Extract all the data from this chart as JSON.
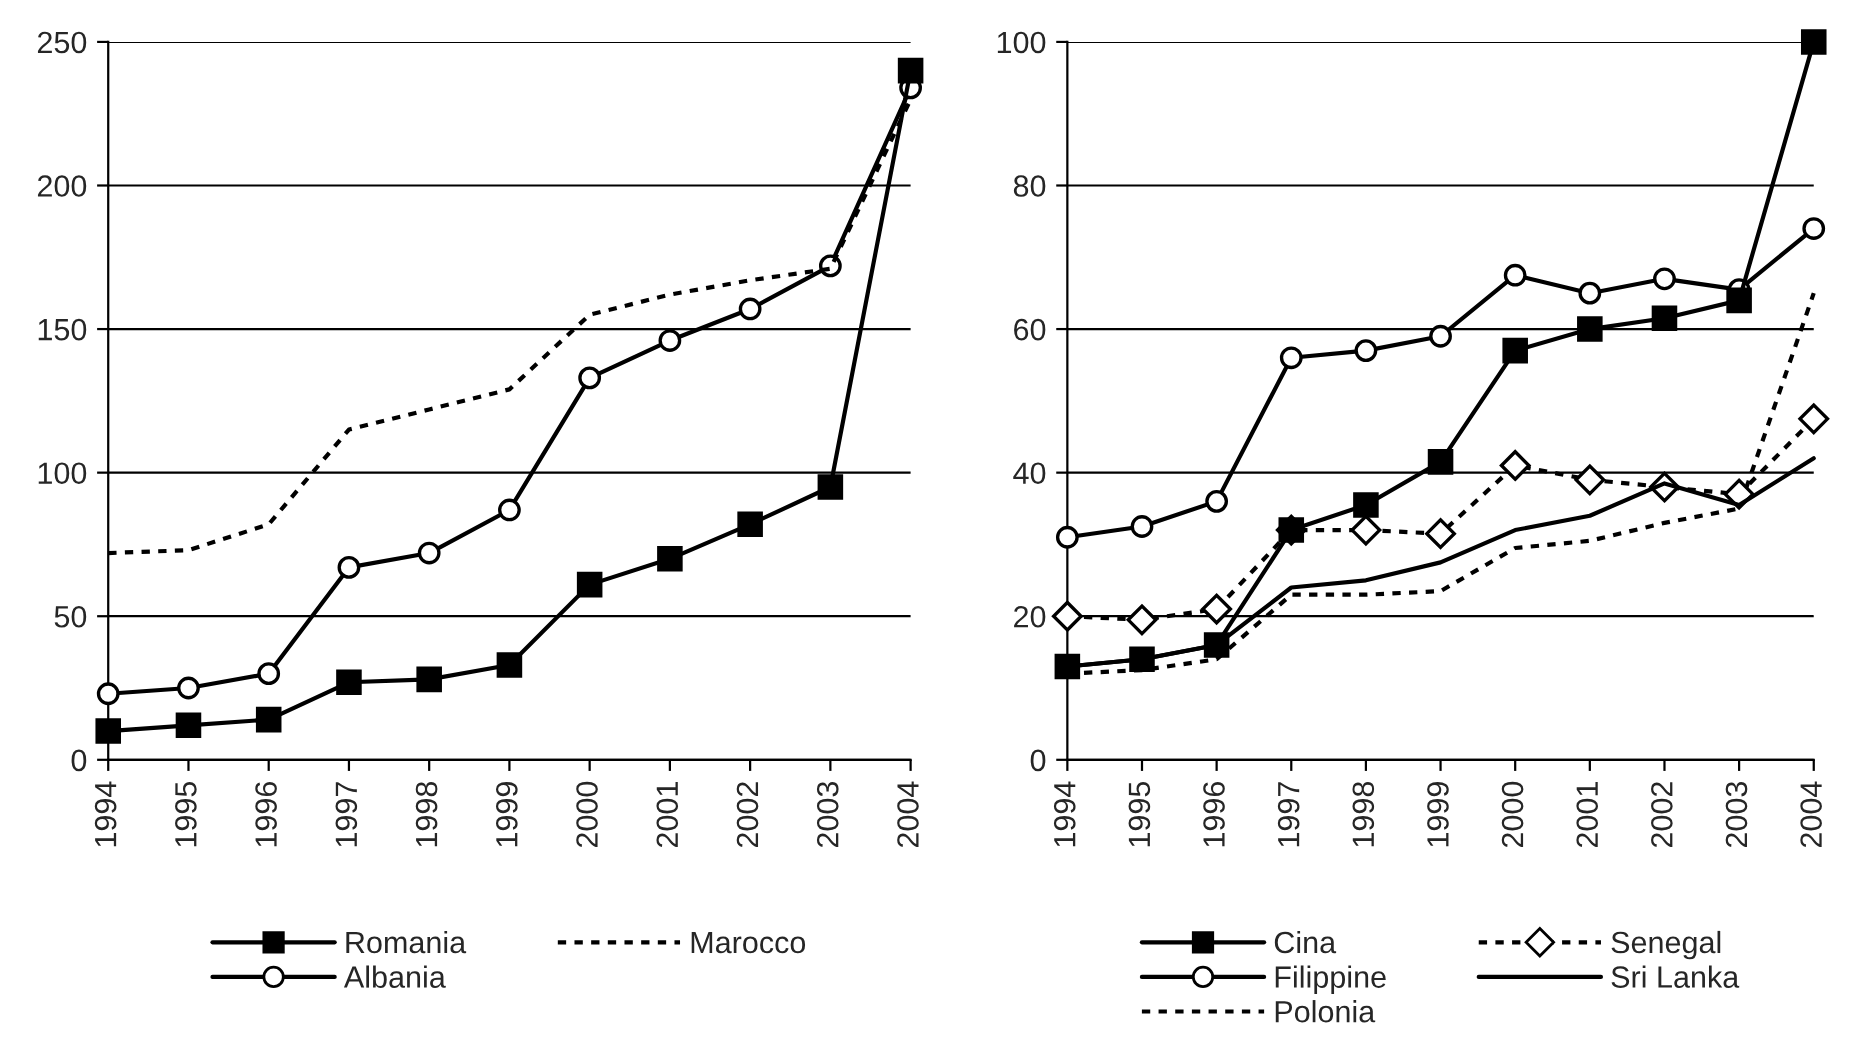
{
  "chart_data": [
    {
      "type": "line",
      "categories": [
        "1994",
        "1995",
        "1996",
        "1997",
        "1998",
        "1999",
        "2000",
        "2001",
        "2002",
        "2003",
        "2004"
      ],
      "ylim": [
        0,
        250
      ],
      "yticks": [
        0,
        50,
        100,
        150,
        200,
        250
      ],
      "grid": "y",
      "legend": "bottom",
      "series": [
        {
          "name": "Romania",
          "color": "#000000",
          "marker": "square",
          "line_style": "solid",
          "values": [
            10,
            12,
            14,
            27,
            28,
            33,
            61,
            70,
            82,
            95,
            240
          ]
        },
        {
          "name": "Albania",
          "color": "#000000",
          "marker": "circle",
          "line_style": "solid",
          "values": [
            23,
            25,
            30,
            67,
            72,
            87,
            133,
            146,
            157,
            172,
            234
          ]
        },
        {
          "name": "Marocco",
          "color": "#000000",
          "marker": "none",
          "line_style": "dotted",
          "values": [
            72,
            73,
            82,
            115,
            122,
            129,
            155,
            162,
            167,
            171,
            230
          ]
        }
      ]
    },
    {
      "type": "line",
      "categories": [
        "1994",
        "1995",
        "1996",
        "1997",
        "1998",
        "1999",
        "2000",
        "2001",
        "2002",
        "2003",
        "2004"
      ],
      "ylim": [
        0,
        100
      ],
      "yticks": [
        0,
        20,
        40,
        60,
        80,
        100
      ],
      "grid": "y",
      "legend": "bottom",
      "series": [
        {
          "name": "Cina",
          "color": "#000000",
          "marker": "square",
          "line_style": "solid",
          "values": [
            13,
            14,
            16,
            32,
            35.5,
            41.5,
            57,
            60,
            61.5,
            64,
            100
          ]
        },
        {
          "name": "Filippine",
          "color": "#000000",
          "marker": "circle",
          "line_style": "solid",
          "values": [
            31,
            32.5,
            36,
            56,
            57,
            59,
            67.5,
            65,
            67,
            65.5,
            74
          ]
        },
        {
          "name": "Polonia",
          "color": "#000000",
          "marker": "none",
          "line_style": "dotted",
          "values": [
            12,
            12.5,
            14,
            23,
            23,
            23.5,
            29.5,
            30.5,
            33,
            35,
            65
          ]
        },
        {
          "name": "Senegal",
          "color": "#000000",
          "marker": "diamond",
          "line_style": "dotted",
          "values": [
            20,
            19.5,
            21,
            32,
            32,
            31.5,
            41,
            39,
            38,
            37,
            47.5
          ]
        },
        {
          "name": "Sri Lanka",
          "color": "#000000",
          "marker": "none",
          "line_style": "solid",
          "values": [
            13,
            14,
            16,
            24,
            25,
            27.5,
            32,
            34,
            38.5,
            35.5,
            42
          ]
        }
      ]
    }
  ]
}
